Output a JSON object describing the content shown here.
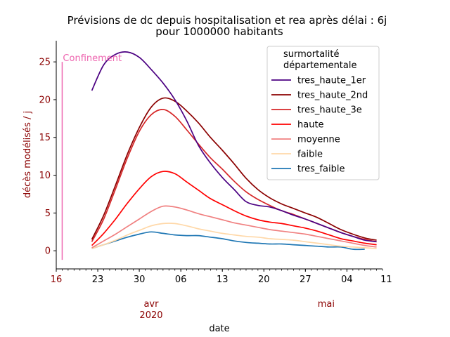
{
  "chart_data": {
    "type": "line",
    "title_line1": "Prévisions de dc depuis hospitalisation et rea après délai : 6j",
    "title_line2": "pour 1000000 habitants",
    "xlabel": "date",
    "ylabel": "décès modélisés / j",
    "ylim": [
      -2.4,
      27.8
    ],
    "xlim": [
      0,
      55
    ],
    "yticks": [
      0,
      5,
      10,
      15,
      20,
      25
    ],
    "xticks": [
      {
        "pos": 0,
        "label": "16",
        "color": "#8b0000"
      },
      {
        "pos": 7,
        "label": "23",
        "color": "#000000"
      },
      {
        "pos": 14,
        "label": "30",
        "color": "#000000"
      },
      {
        "pos": 21,
        "label": "06",
        "color": "#000000"
      },
      {
        "pos": 28,
        "label": "13",
        "color": "#000000"
      },
      {
        "pos": 35,
        "label": "20",
        "color": "#000000"
      },
      {
        "pos": 42,
        "label": "27",
        "color": "#000000"
      },
      {
        "pos": 49,
        "label": "04",
        "color": "#000000"
      },
      {
        "pos": 56,
        "label": "11",
        "color": "#000000"
      }
    ],
    "month_labels": [
      {
        "pos": 16,
        "label": "avr",
        "color": "#8b0000"
      },
      {
        "pos": 16,
        "label": "2020",
        "color": "#8b0000"
      },
      {
        "pos": 45.5,
        "label": "mai",
        "color": "#8b0000"
      }
    ],
    "annotation": {
      "label": "Confinement",
      "x": 1,
      "ymin": -1.2,
      "ymax": 25,
      "color": "#ee66b0"
    },
    "legend": {
      "title_line1": "surmortalité",
      "title_line2": "départementale",
      "placement": "upper right"
    },
    "x": [
      6,
      8,
      10,
      12,
      14,
      16,
      18,
      20,
      22,
      24,
      26,
      28,
      30,
      32,
      34,
      36,
      38,
      40,
      42,
      44,
      46,
      48,
      50,
      52,
      54
    ],
    "series": [
      {
        "name": "tres_haute_1er",
        "color": "#4b0082",
        "values": [
          21.2,
          24.6,
          26.0,
          26.3,
          25.6,
          24.0,
          22.2,
          20.0,
          17.2,
          13.9,
          11.6,
          9.7,
          8.1,
          6.5,
          6.0,
          5.8,
          5.3,
          4.7,
          4.2,
          3.6,
          3.0,
          2.4,
          1.9,
          1.4,
          1.2
        ]
      },
      {
        "name": "tres_haute_2nd",
        "color": "#8b0000",
        "values": [
          1.5,
          4.7,
          8.7,
          12.8,
          16.3,
          19.0,
          20.2,
          19.8,
          18.5,
          16.9,
          15.0,
          13.3,
          11.5,
          9.6,
          8.1,
          7.0,
          6.2,
          5.6,
          5.0,
          4.4,
          3.6,
          2.8,
          2.2,
          1.7,
          1.4
        ]
      },
      {
        "name": "tres_haute_3e",
        "color": "#d62728",
        "values": [
          1.2,
          4.2,
          8.2,
          12.3,
          15.8,
          18.0,
          18.7,
          17.8,
          16.0,
          14.1,
          12.3,
          10.8,
          9.2,
          7.8,
          6.8,
          6.0,
          5.3,
          4.8,
          4.2,
          3.6,
          3.0,
          2.4,
          1.9,
          1.5,
          1.2
        ]
      },
      {
        "name": "haute",
        "color": "#ff0000",
        "values": [
          0.7,
          2.3,
          4.2,
          6.3,
          8.2,
          9.8,
          10.5,
          10.2,
          9.1,
          8.0,
          6.9,
          6.1,
          5.3,
          4.6,
          4.1,
          3.8,
          3.6,
          3.3,
          3.0,
          2.6,
          2.1,
          1.6,
          1.3,
          1.0,
          0.8
        ]
      },
      {
        "name": "moyenne",
        "color": "#f08080",
        "values": [
          0.4,
          1.3,
          2.2,
          3.2,
          4.2,
          5.2,
          5.9,
          5.8,
          5.4,
          4.9,
          4.5,
          4.1,
          3.7,
          3.4,
          3.1,
          2.8,
          2.6,
          2.4,
          2.2,
          1.9,
          1.6,
          1.3,
          1.0,
          0.7,
          0.5
        ]
      },
      {
        "name": "faible",
        "color": "#ffd8a8",
        "values": [
          0.3,
          0.8,
          1.4,
          2.1,
          2.7,
          3.3,
          3.6,
          3.6,
          3.3,
          2.9,
          2.6,
          2.3,
          2.1,
          1.9,
          1.8,
          1.6,
          1.5,
          1.4,
          1.2,
          1.0,
          0.8,
          0.6,
          0.5,
          0.4,
          0.3
        ]
      },
      {
        "name": "tres_faible",
        "color": "#1f77b4",
        "values": [
          0.3,
          0.8,
          1.3,
          1.8,
          2.2,
          2.5,
          2.3,
          2.1,
          2.0,
          2.0,
          1.8,
          1.6,
          1.3,
          1.1,
          1.0,
          0.9,
          0.9,
          0.8,
          0.7,
          0.6,
          0.5,
          0.5,
          0.2,
          0.2,
          null
        ]
      }
    ]
  }
}
